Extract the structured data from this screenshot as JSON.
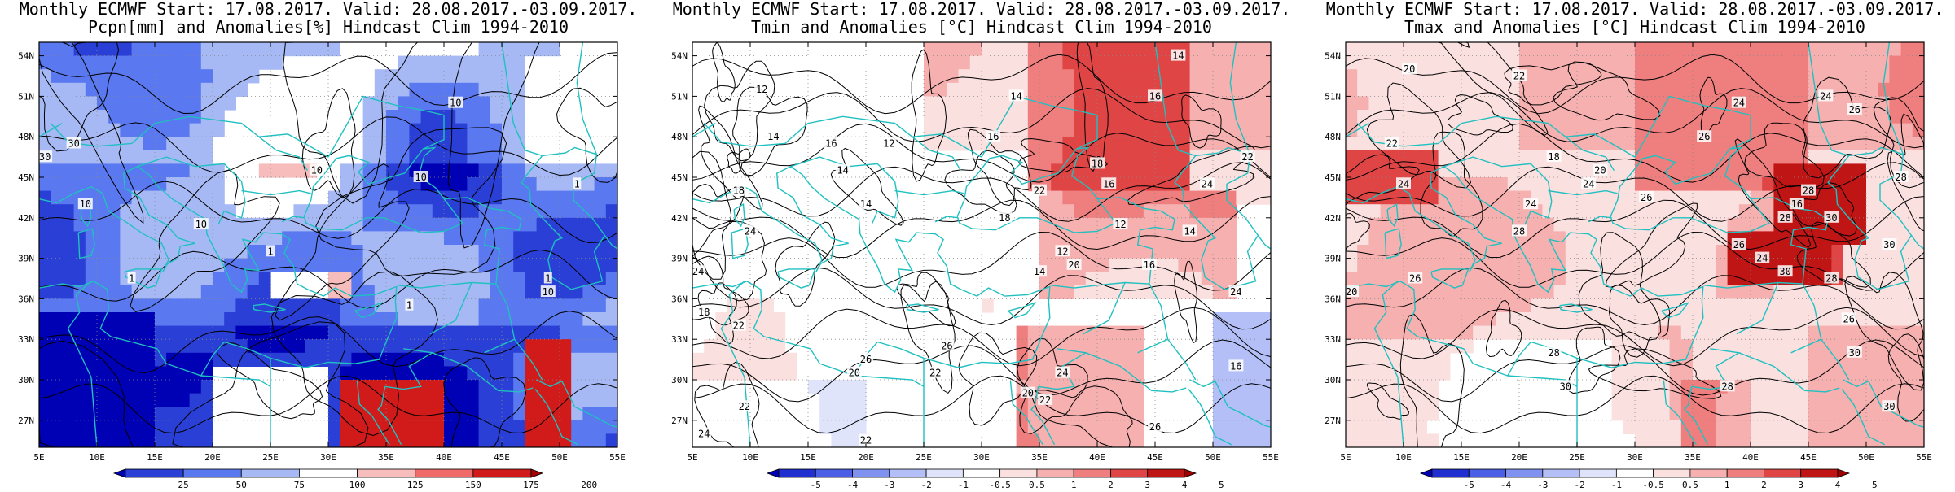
{
  "panels": [
    {
      "title_line1": "Monthly ECMWF Start: 17.08.2017. Valid: 28.08.2017.-03.09.2017.",
      "title_line2": "Pcpn[mm] and Anomalies[%] Hindcast Clim 1994-2010",
      "variable": "precipitation",
      "colorbar_ticks": [
        "25",
        "50",
        "75",
        "100",
        "125",
        "150",
        "175",
        "200"
      ],
      "colorbar_colors": [
        "#0000b4",
        "#2a3fd6",
        "#5a78f0",
        "#a6b9f5",
        "#ffffff",
        "#f7bcbc",
        "#f06a6a",
        "#d11a1a",
        "#a00000"
      ],
      "contour_labels": [
        {
          "value": "10",
          "lon": 41,
          "lat": 50.5
        },
        {
          "value": "10",
          "lon": 29,
          "lat": 45.5
        },
        {
          "value": "10",
          "lon": 38,
          "lat": 45
        },
        {
          "value": "10",
          "lon": 9,
          "lat": 43
        },
        {
          "value": "10",
          "lon": 19,
          "lat": 41.5
        },
        {
          "value": "10",
          "lon": 49,
          "lat": 36.5
        },
        {
          "value": "30",
          "lon": 8,
          "lat": 47.5
        },
        {
          "value": "30",
          "lon": 5.5,
          "lat": 46.5
        },
        {
          "value": "1",
          "lon": 25,
          "lat": 39.5
        },
        {
          "value": "1",
          "lon": 13,
          "lat": 37.5
        },
        {
          "value": "1",
          "lon": 37,
          "lat": 35.5
        },
        {
          "value": "1",
          "lon": 51.5,
          "lat": 44.5
        },
        {
          "value": "1",
          "lon": 49,
          "lat": 37.5
        }
      ]
    },
    {
      "title_line1": "Monthly ECMWF Start: 17.08.2017. Valid: 28.08.2017.-03.09.2017.",
      "title_line2": "Tmin and Anomalies [°C] Hindcast Clim 1994-2010",
      "variable": "tmin",
      "colorbar_ticks": [
        "-5",
        "-4",
        "-3",
        "-2",
        "-1",
        "-0.5",
        "0.5",
        "1",
        "2",
        "3",
        "4",
        "5"
      ],
      "colorbar_colors": [
        "#0000b4",
        "#1f2fd0",
        "#4a5fe6",
        "#7f92f0",
        "#b3bff6",
        "#dfe4fb",
        "#ffffff",
        "#fbe0e0",
        "#f6b0b0",
        "#ef7f7f",
        "#e04545",
        "#c01515",
        "#a00000"
      ],
      "contour_labels": [
        {
          "value": "14",
          "lon": 47,
          "lat": 54
        },
        {
          "value": "12",
          "lon": 11,
          "lat": 51.5
        },
        {
          "value": "14",
          "lon": 33,
          "lat": 51
        },
        {
          "value": "16",
          "lon": 45,
          "lat": 51
        },
        {
          "value": "14",
          "lon": 12,
          "lat": 48
        },
        {
          "value": "16",
          "lon": 17,
          "lat": 47.5
        },
        {
          "value": "16",
          "lon": 31,
          "lat": 48
        },
        {
          "value": "12",
          "lon": 22,
          "lat": 47.5
        },
        {
          "value": "14",
          "lon": 18,
          "lat": 45.5
        },
        {
          "value": "18",
          "lon": 40,
          "lat": 46
        },
        {
          "value": "22",
          "lon": 53,
          "lat": 46.5
        },
        {
          "value": "16",
          "lon": 41,
          "lat": 44.5
        },
        {
          "value": "24",
          "lon": 49.5,
          "lat": 44.5
        },
        {
          "value": "22",
          "lon": 35,
          "lat": 44
        },
        {
          "value": "18",
          "lon": 9,
          "lat": 44
        },
        {
          "value": "14",
          "lon": 20,
          "lat": 43
        },
        {
          "value": "18",
          "lon": 32,
          "lat": 42
        },
        {
          "value": "12",
          "lon": 42,
          "lat": 41.5
        },
        {
          "value": "14",
          "lon": 48,
          "lat": 41
        },
        {
          "value": "24",
          "lon": 10,
          "lat": 41
        },
        {
          "value": "12",
          "lon": 37,
          "lat": 39.5
        },
        {
          "value": "20",
          "lon": 38,
          "lat": 38.5
        },
        {
          "value": "14",
          "lon": 35,
          "lat": 38
        },
        {
          "value": "16",
          "lon": 44.5,
          "lat": 38.5
        },
        {
          "value": "24",
          "lon": 5.5,
          "lat": 38
        },
        {
          "value": "24",
          "lon": 52,
          "lat": 36.5
        },
        {
          "value": "18",
          "lon": 6,
          "lat": 35
        },
        {
          "value": "22",
          "lon": 9,
          "lat": 34
        },
        {
          "value": "26",
          "lon": 20,
          "lat": 31.5
        },
        {
          "value": "26",
          "lon": 27,
          "lat": 32.5
        },
        {
          "value": "20",
          "lon": 19,
          "lat": 30.5
        },
        {
          "value": "22",
          "lon": 26,
          "lat": 30.5
        },
        {
          "value": "24",
          "lon": 37,
          "lat": 30.5
        },
        {
          "value": "20",
          "lon": 34,
          "lat": 29
        },
        {
          "value": "22",
          "lon": 35.5,
          "lat": 28.5
        },
        {
          "value": "26",
          "lon": 45,
          "lat": 26.5
        },
        {
          "value": "22",
          "lon": 9.5,
          "lat": 28
        },
        {
          "value": "24",
          "lon": 6,
          "lat": 26
        },
        {
          "value": "22",
          "lon": 20,
          "lat": 25.5
        },
        {
          "value": "16",
          "lon": 52,
          "lat": 31
        }
      ]
    },
    {
      "title_line1": "Monthly ECMWF Start: 17.08.2017. Valid: 28.08.2017.-03.09.2017.",
      "title_line2": "Tmax and Anomalies [°C] Hindcast Clim 1994-2010",
      "variable": "tmax",
      "colorbar_ticks": [
        "-5",
        "-4",
        "-3",
        "-2",
        "-1",
        "-0.5",
        "0.5",
        "1",
        "2",
        "3",
        "4",
        "5"
      ],
      "colorbar_colors": [
        "#0000b4",
        "#1f2fd0",
        "#4a5fe6",
        "#7f92f0",
        "#b3bff6",
        "#dfe4fb",
        "#ffffff",
        "#fbe0e0",
        "#f6b0b0",
        "#ef7f7f",
        "#e04545",
        "#c01515",
        "#a00000"
      ],
      "contour_labels": [
        {
          "value": "20",
          "lon": 10.5,
          "lat": 53
        },
        {
          "value": "22",
          "lon": 20,
          "lat": 52.5
        },
        {
          "value": "24",
          "lon": 39,
          "lat": 50.5
        },
        {
          "value": "24",
          "lon": 46.5,
          "lat": 51
        },
        {
          "value": "26",
          "lon": 49,
          "lat": 50
        },
        {
          "value": "22",
          "lon": 9,
          "lat": 47.5
        },
        {
          "value": "26",
          "lon": 36,
          "lat": 48
        },
        {
          "value": "18",
          "lon": 23,
          "lat": 46.5
        },
        {
          "value": "20",
          "lon": 27,
          "lat": 45.5
        },
        {
          "value": "24",
          "lon": 26,
          "lat": 44.5
        },
        {
          "value": "24",
          "lon": 10,
          "lat": 44.5
        },
        {
          "value": "26",
          "lon": 31,
          "lat": 43.5
        },
        {
          "value": "28",
          "lon": 45,
          "lat": 44
        },
        {
          "value": "16",
          "lon": 44,
          "lat": 43
        },
        {
          "value": "30",
          "lon": 47,
          "lat": 42
        },
        {
          "value": "28",
          "lon": 53,
          "lat": 45
        },
        {
          "value": "24",
          "lon": 21,
          "lat": 43
        },
        {
          "value": "28",
          "lon": 43,
          "lat": 42
        },
        {
          "value": "30",
          "lon": 52,
          "lat": 40
        },
        {
          "value": "28",
          "lon": 20,
          "lat": 41
        },
        {
          "value": "26",
          "lon": 39,
          "lat": 40
        },
        {
          "value": "24",
          "lon": 41,
          "lat": 39
        },
        {
          "value": "30",
          "lon": 43,
          "lat": 38
        },
        {
          "value": "28",
          "lon": 47,
          "lat": 37.5
        },
        {
          "value": "26",
          "lon": 11,
          "lat": 37.5
        },
        {
          "value": "20",
          "lon": 5.5,
          "lat": 36.5
        },
        {
          "value": "26",
          "lon": 48.5,
          "lat": 34.5
        },
        {
          "value": "28",
          "lon": 23,
          "lat": 32
        },
        {
          "value": "30",
          "lon": 24,
          "lat": 29.5
        },
        {
          "value": "28",
          "lon": 38,
          "lat": 29.5
        },
        {
          "value": "30",
          "lon": 49,
          "lat": 32
        },
        {
          "value": "30",
          "lon": 52,
          "lat": 28
        }
      ]
    }
  ],
  "map": {
    "lon_ticks": [
      "5E",
      "10E",
      "15E",
      "20E",
      "25E",
      "30E",
      "35E",
      "40E",
      "45E",
      "50E",
      "55E"
    ],
    "lat_ticks": [
      "27N",
      "30N",
      "33N",
      "36N",
      "39N",
      "42N",
      "45N",
      "48N",
      "51N",
      "54N"
    ],
    "lon_range": [
      5,
      55
    ],
    "lat_range": [
      25,
      55
    ],
    "coastline_color": "#20c0c0",
    "contour_color": "#000000",
    "gridline_style": "dotted"
  }
}
